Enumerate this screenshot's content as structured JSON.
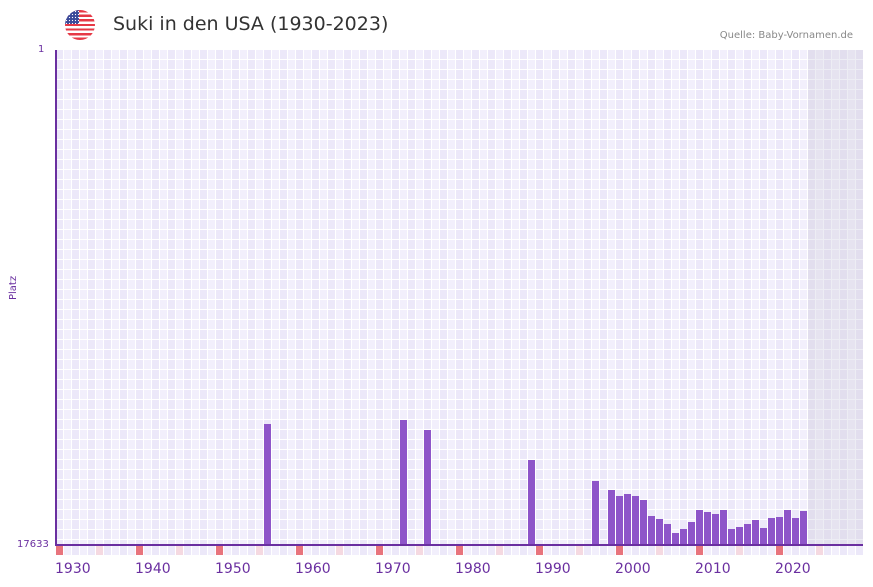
{
  "header": {
    "flag_icon": "us-flag-icon",
    "title": "Suki in den USA (1930-2023)",
    "source": "Quelle: Baby-Vornamen.de"
  },
  "colors": {
    "bar": "#8e55c9",
    "axis": "#6a2fa0",
    "decade_marker": "#e8747d",
    "half_decade_marker": "#f5d9e1"
  },
  "chart_data": {
    "type": "bar",
    "title": "Suki in den USA (1930-2023)",
    "xlabel": "",
    "ylabel": "Platz",
    "ylim": [
      17633,
      1
    ],
    "y_ticks": [
      "1",
      "17633"
    ],
    "x_ticks": [
      "1930",
      "1940",
      "1950",
      "1960",
      "1970",
      "1980",
      "1990",
      "2000",
      "2010",
      "2020"
    ],
    "x_range": [
      1930,
      2029
    ],
    "shaded_future_from": 2024,
    "grid": true,
    "legend": null,
    "x": [
      1956,
      1973,
      1976,
      1989,
      1997,
      1999,
      2000,
      2001,
      2002,
      2003,
      2004,
      2005,
      2006,
      2007,
      2008,
      2009,
      2010,
      2011,
      2012,
      2013,
      2014,
      2015,
      2016,
      2017,
      2018,
      2019,
      2020,
      2021,
      2022,
      2023
    ],
    "values": [
      13323,
      13181,
      13537,
      14606,
      15354,
      15674,
      15888,
      15817,
      15888,
      16030,
      16600,
      16707,
      16885,
      17206,
      17064,
      16814,
      16386,
      16457,
      16529,
      16386,
      17064,
      16992,
      16885,
      16743,
      17028,
      16671,
      16636,
      16386,
      16671,
      16422
    ]
  },
  "axis": {
    "y_title": "Platz",
    "y_top_label": "1",
    "y_bottom_label": "17633",
    "x_labels": [
      "1930",
      "1940",
      "1950",
      "1960",
      "1970",
      "1980",
      "1990",
      "2000",
      "2010",
      "2020"
    ]
  }
}
